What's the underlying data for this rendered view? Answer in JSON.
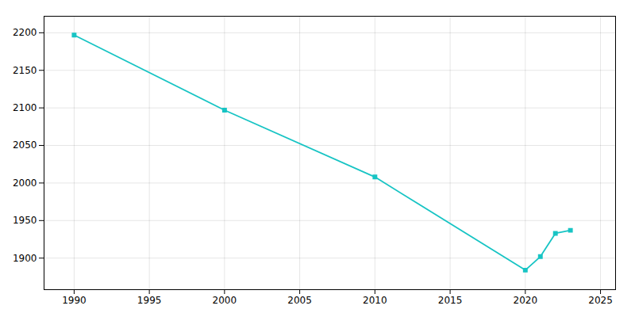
{
  "chart_data": {
    "type": "line",
    "x": [
      1990,
      2000,
      2010,
      2020,
      2021,
      2022,
      2023
    ],
    "values": [
      2197,
      2097,
      2008,
      1884,
      1902,
      1933,
      1937
    ],
    "color": "#17c4c4",
    "marker": "square",
    "xlim": [
      1988,
      2026
    ],
    "ylim": [
      1858,
      2222
    ],
    "xticks": [
      1990,
      1995,
      2000,
      2005,
      2010,
      2015,
      2020,
      2025
    ],
    "yticks": [
      1900,
      1950,
      2000,
      2050,
      2100,
      2150,
      2200
    ],
    "grid": true
  }
}
